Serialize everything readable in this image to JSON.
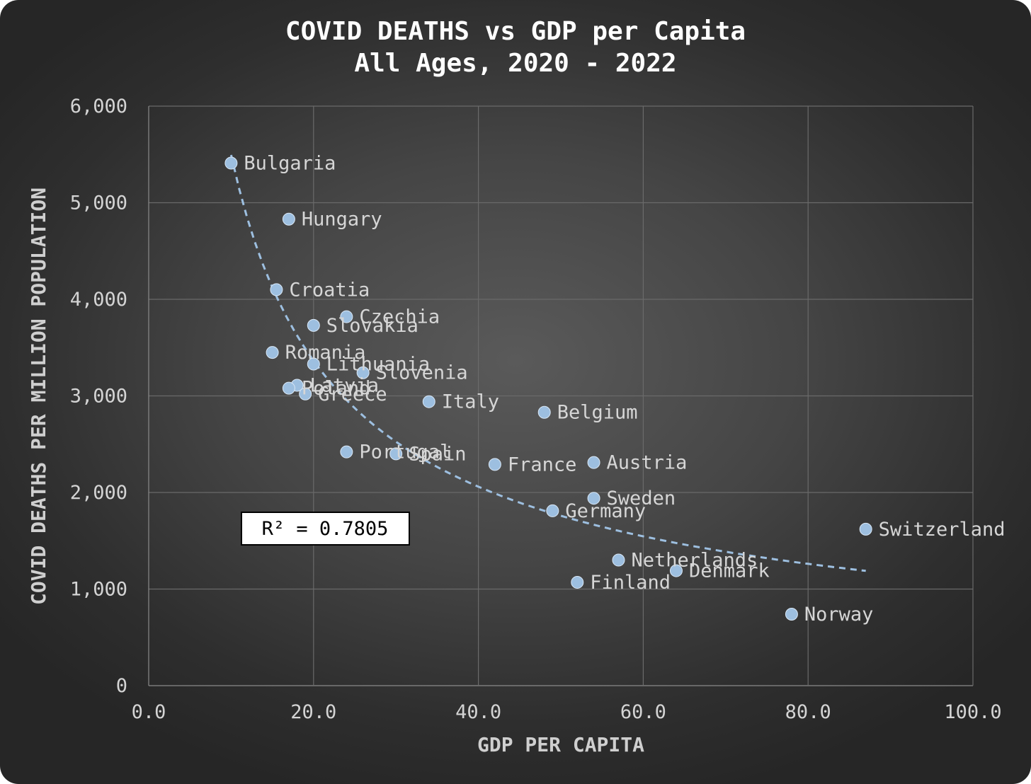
{
  "chart_data": {
    "type": "scatter",
    "title": [
      "COVID DEATHS vs GDP per Capita",
      "All Ages, 2020 - 2022"
    ],
    "xlabel": "GDP PER CAPITA",
    "ylabel": "COVID DEATHS PER MILLION POPULATION",
    "xlim": [
      0,
      100
    ],
    "ylim": [
      0,
      6000
    ],
    "x_ticks": [
      "0.0",
      "20.0",
      "40.0",
      "60.0",
      "80.0",
      "100.0"
    ],
    "y_ticks": [
      "0",
      "1,000",
      "2,000",
      "3,000",
      "4,000",
      "5,000",
      "6,000"
    ],
    "grid": true,
    "point_color": "#9dbfe0",
    "trendline": {
      "type": "power",
      "color": "#9dbfe0",
      "style": "dashed",
      "x_range": [
        10,
        87
      ],
      "r_squared_label": "R² = 0.7805"
    },
    "points": [
      {
        "label": "Bulgaria",
        "x": 10,
        "y": 5410
      },
      {
        "label": "Hungary",
        "x": 17,
        "y": 4830
      },
      {
        "label": "Croatia",
        "x": 15.5,
        "y": 4100
      },
      {
        "label": "Czechia",
        "x": 24,
        "y": 3820
      },
      {
        "label": "Slovakia",
        "x": 20,
        "y": 3730
      },
      {
        "label": "Romania",
        "x": 15,
        "y": 3450
      },
      {
        "label": "Lithuania",
        "x": 20,
        "y": 3330
      },
      {
        "label": "Slovenia",
        "x": 26,
        "y": 3240
      },
      {
        "label": "Latvia",
        "x": 18,
        "y": 3110
      },
      {
        "label": "Poland",
        "x": 17,
        "y": 3080
      },
      {
        "label": "Greece",
        "x": 19,
        "y": 3020
      },
      {
        "label": "Italy",
        "x": 34,
        "y": 2940
      },
      {
        "label": "Belgium",
        "x": 48,
        "y": 2830
      },
      {
        "label": "Portugal",
        "x": 24,
        "y": 2420
      },
      {
        "label": "Spain",
        "x": 30,
        "y": 2400
      },
      {
        "label": "France",
        "x": 42,
        "y": 2290
      },
      {
        "label": "Austria",
        "x": 54,
        "y": 2310
      },
      {
        "label": "Sweden",
        "x": 54,
        "y": 1940
      },
      {
        "label": "Germany",
        "x": 49,
        "y": 1810
      },
      {
        "label": "Switzerland",
        "x": 87,
        "y": 1620
      },
      {
        "label": "Netherlands",
        "x": 57,
        "y": 1300
      },
      {
        "label": "Denmark",
        "x": 64,
        "y": 1190
      },
      {
        "label": "Finland",
        "x": 52,
        "y": 1070
      },
      {
        "label": "Norway",
        "x": 78,
        "y": 740
      }
    ]
  }
}
